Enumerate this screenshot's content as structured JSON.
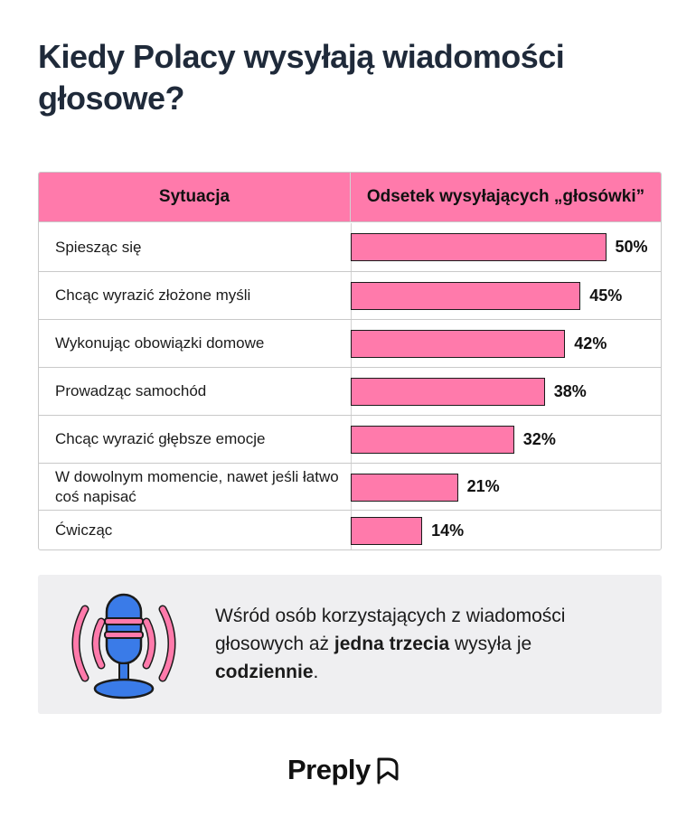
{
  "title": "Kiedy Polacy wysyłają wiadomości głosowe?",
  "chart_data": {
    "type": "table",
    "columns": [
      "Sytuacja",
      "Odsetek wysyłających „głosówki”"
    ],
    "categories": [
      "Spiesząc się",
      "Chcąc wyrazić złożone myśli",
      "Wykonując obowiązki domowe",
      "Prowadząc samochód",
      "Chcąc wyrazić głębsze emocje",
      "W dowolnym momencie, nawet jeśli łatwo coś napisać",
      "Ćwicząc"
    ],
    "values": [
      50,
      45,
      42,
      38,
      32,
      21,
      14
    ],
    "value_labels": [
      "50%",
      "45%",
      "42%",
      "38%",
      "32%",
      "21%",
      "14%"
    ],
    "bar_color": "#ff7aab"
  },
  "note": {
    "part1": "Wśród osób korzystających z wiadomości głosowych aż ",
    "bold1": "jedna trzecia",
    "part2": " wysyła je ",
    "bold2": "codziennie",
    "part3": ".",
    "icon": "microphone-icon"
  },
  "brand": {
    "name": "Preply",
    "icon": "preply-logo-icon"
  },
  "colors": {
    "accent_pink": "#ff7aab",
    "mic_blue": "#3a7be8",
    "title": "#1f2a3a",
    "note_bg": "#efeff1"
  }
}
